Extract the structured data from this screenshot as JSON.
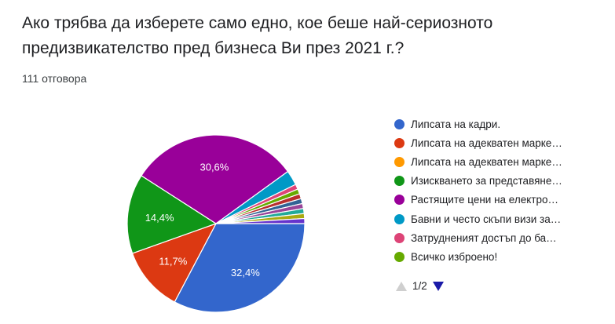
{
  "question": {
    "title": "Ако трябва да изберете само едно, кое беше най-сериозното предизвикателство пред бизнеса Ви през 2021 г.?",
    "responses": "111 отговора"
  },
  "pager": {
    "label": "1/2",
    "prev_icon": "triangle-up-icon",
    "next_icon": "triangle-down-icon"
  },
  "chart_data": {
    "type": "pie",
    "title": "",
    "legend_position": "right",
    "slices": [
      {
        "label": "Липсата на кадри.",
        "value": 32.4,
        "display": "32,4%",
        "color": "#3366cc"
      },
      {
        "label": "Липсата на адекватен марке…",
        "value": 11.7,
        "display": "11,7%",
        "color": "#dc3912"
      },
      {
        "label": "Липсата на адекватен марке…",
        "value": 0,
        "display": "",
        "color": "#ff9900"
      },
      {
        "label": "Изискването за представяне…",
        "value": 14.4,
        "display": "14,4%",
        "color": "#109618"
      },
      {
        "label": "Растящите цени на електро…",
        "value": 30.6,
        "display": "30,6%",
        "color": "#990099"
      },
      {
        "label": "Бавни и често скъпи визи за…",
        "value": 2.7,
        "display": "",
        "color": "#0099c6"
      },
      {
        "label": "Затрудненият достъп до ба…",
        "value": 0.9,
        "display": "",
        "color": "#dd4477"
      },
      {
        "label": "Всичко изброено!",
        "value": 0.9,
        "display": "",
        "color": "#66aa00"
      },
      {
        "label": "",
        "value": 0.9,
        "display": "",
        "color": "#b82e2e"
      },
      {
        "label": "",
        "value": 0.9,
        "display": "",
        "color": "#316395"
      },
      {
        "label": "",
        "value": 0.9,
        "display": "",
        "color": "#994499"
      },
      {
        "label": "",
        "value": 0.9,
        "display": "",
        "color": "#22aa99"
      },
      {
        "label": "",
        "value": 0.9,
        "display": "",
        "color": "#aaaa11"
      },
      {
        "label": "",
        "value": 0.9,
        "display": "",
        "color": "#6633cc"
      }
    ]
  }
}
